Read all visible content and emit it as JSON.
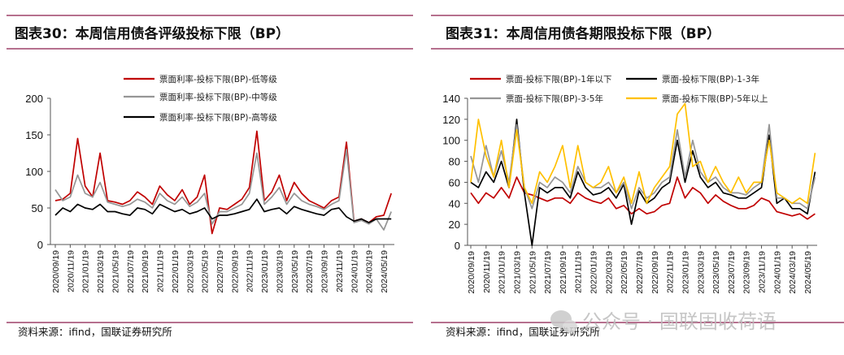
{
  "colors": {
    "rule": "#8b1a4a",
    "red": "#c00000",
    "gray": "#969696",
    "black": "#000000",
    "yellow": "#ffc000"
  },
  "watermark": "公众号 · 国联固收荷语",
  "chart_data": [
    {
      "type": "line",
      "title": "图表30：本周信用债各评级投标下限（BP）",
      "source": "资料来源：ifind，国联证券研究所",
      "ylim": [
        0,
        200
      ],
      "yticks": [
        "0",
        "50",
        "100",
        "150",
        "200"
      ],
      "grid": false,
      "legend_placement": "top-center",
      "xtick_labels": [
        "2020/09/19",
        "2020/11/19",
        "2021/01/19",
        "2021/03/19",
        "2021/05/19",
        "2021/07/19",
        "2021/09/19",
        "2021/11/19",
        "2022/01/19",
        "2022/03/19",
        "2022/05/19",
        "2022/07/19",
        "2022/09/19",
        "2022/11/19",
        "2023/01/19",
        "2023/03/19",
        "2023/05/19",
        "2023/07/19",
        "2023/09/19",
        "2023/11/19",
        "2024/01/19",
        "2024/03/19",
        "2024/05/19"
      ],
      "x_start": "2020/09",
      "x_end": "2024/06",
      "x_step": "month",
      "series": [
        {
          "name": "票面利率-投标下限(BP)-低等级",
          "color": "#c00000",
          "values": [
            60,
            62,
            70,
            145,
            80,
            65,
            125,
            60,
            58,
            55,
            60,
            72,
            65,
            55,
            80,
            68,
            60,
            75,
            55,
            65,
            95,
            15,
            50,
            48,
            55,
            62,
            78,
            155,
            60,
            72,
            95,
            60,
            85,
            70,
            60,
            55,
            50,
            60,
            65,
            140,
            32,
            35,
            30,
            38,
            40,
            70
          ]
        },
        {
          "name": "票面利率-投标下限(BP)-中等级",
          "color": "#969696",
          "values": [
            75,
            60,
            65,
            95,
            70,
            65,
            85,
            58,
            55,
            52,
            55,
            62,
            58,
            50,
            70,
            60,
            55,
            65,
            52,
            58,
            70,
            28,
            45,
            45,
            50,
            55,
            70,
            125,
            55,
            65,
            78,
            55,
            70,
            60,
            55,
            52,
            48,
            55,
            60,
            130,
            30,
            33,
            28,
            35,
            20,
            45
          ]
        },
        {
          "name": "票面利率-投标下限(BP)-高等级",
          "color": "#000000",
          "values": [
            40,
            50,
            45,
            55,
            50,
            48,
            55,
            45,
            45,
            42,
            40,
            50,
            48,
            42,
            55,
            50,
            45,
            48,
            42,
            45,
            50,
            35,
            40,
            40,
            42,
            45,
            48,
            62,
            45,
            48,
            50,
            42,
            52,
            48,
            45,
            42,
            40,
            48,
            50,
            38,
            32,
            35,
            30,
            35,
            35,
            35
          ]
        }
      ]
    },
    {
      "type": "line",
      "title": "图表31：本周信用债各期限投标下限（BP）",
      "source": "资料来源：ifind，国联证券研究所",
      "ylim": [
        0,
        140
      ],
      "yticks": [
        "0",
        "20",
        "40",
        "60",
        "80",
        "100",
        "120",
        "140"
      ],
      "grid": false,
      "legend_placement": "top-center",
      "xtick_labels": [
        "2020/09/19",
        "2020/11/19",
        "2021/01/19",
        "2021/03/19",
        "2021/05/19",
        "2021/07/19",
        "2021/09/19",
        "2021/11/19",
        "2022/01/19",
        "2022/03/19",
        "2022/05/19",
        "2022/07/19",
        "2022/09/19",
        "2022/11/19",
        "2023/01/19",
        "2023/03/19",
        "2023/05/19",
        "2023/07/19",
        "2023/09/19",
        "2023/11/19",
        "2024/01/19",
        "2024/03/19",
        "2024/05/19"
      ],
      "x_start": "2020/09",
      "x_end": "2024/06",
      "x_step": "month",
      "series": [
        {
          "name": "票面-投标下限(BP)-1年以下",
          "color": "#c00000",
          "values": [
            50,
            40,
            50,
            45,
            55,
            45,
            65,
            50,
            48,
            45,
            42,
            45,
            45,
            40,
            50,
            45,
            42,
            40,
            45,
            35,
            38,
            30,
            35,
            30,
            32,
            38,
            40,
            65,
            45,
            55,
            50,
            40,
            48,
            42,
            38,
            35,
            35,
            38,
            45,
            42,
            32,
            30,
            28,
            30,
            25,
            30
          ]
        },
        {
          "name": "票面-投标下限(BP)-1-3年",
          "color": "#000000",
          "values": [
            60,
            55,
            70,
            60,
            80,
            55,
            120,
            50,
            0,
            55,
            50,
            55,
            55,
            45,
            70,
            55,
            48,
            50,
            55,
            45,
            58,
            20,
            52,
            40,
            45,
            55,
            60,
            100,
            60,
            90,
            65,
            55,
            60,
            50,
            48,
            45,
            45,
            50,
            55,
            105,
            40,
            45,
            35,
            35,
            30,
            70
          ]
        },
        {
          "name": "票面-投标下限(BP)-3-5年",
          "color": "#969696",
          "values": [
            85,
            60,
            95,
            65,
            90,
            60,
            115,
            55,
            35,
            60,
            55,
            65,
            60,
            50,
            75,
            60,
            55,
            55,
            60,
            50,
            60,
            35,
            55,
            45,
            50,
            60,
            65,
            110,
            65,
            100,
            70,
            60,
            65,
            55,
            50,
            50,
            48,
            55,
            60,
            115,
            45,
            45,
            40,
            40,
            35,
            65
          ]
        },
        {
          "name": "票面-投标下限(BP)-5年以上",
          "color": "#ffc000",
          "values": [
            60,
            120,
            85,
            65,
            100,
            55,
            110,
            55,
            40,
            70,
            60,
            75,
            95,
            55,
            95,
            60,
            55,
            60,
            75,
            50,
            65,
            40,
            70,
            40,
            55,
            65,
            75,
            125,
            135,
            75,
            80,
            60,
            75,
            60,
            50,
            65,
            50,
            60,
            60,
            100,
            50,
            45,
            40,
            45,
            40,
            88
          ]
        }
      ]
    }
  ]
}
